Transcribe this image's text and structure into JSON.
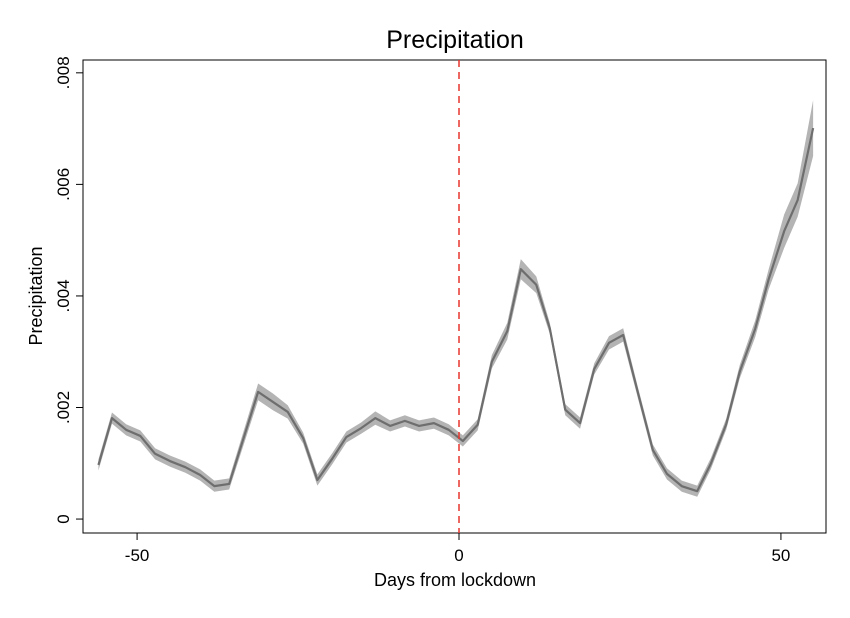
{
  "chart_data": {
    "type": "line",
    "title": "Precipitation",
    "xlabel": "Days from lockdown",
    "ylabel": "Precipitation",
    "x": [
      -56,
      -53.9,
      -51.7,
      -49.5,
      -47.2,
      -44.9,
      -42.5,
      -40.2,
      -38,
      -35.7,
      -31.2,
      -28.9,
      -26.6,
      -24.2,
      -22,
      -19.7,
      -17.5,
      -15.2,
      -13,
      -10.7,
      -8.4,
      -6.2,
      -3.9,
      -1.6,
      0.6,
      2.9,
      5.1,
      7.5,
      9.6,
      12,
      14.1,
      16.5,
      18.8,
      21,
      23.3,
      25.5,
      27.8,
      30.1,
      32.3,
      34.6,
      37,
      39.1,
      41.5,
      43.6,
      46,
      48.1,
      50.5,
      52.6,
      55
    ],
    "values": [
      0.00097,
      0.00181,
      0.0016,
      0.00149,
      0.00117,
      0.00104,
      0.00093,
      0.00079,
      0.00059,
      0.00063,
      0.00228,
      0.0021,
      0.00192,
      0.00145,
      0.0007,
      0.00108,
      0.00147,
      0.00163,
      0.00181,
      0.00167,
      0.00176,
      0.00167,
      0.00172,
      0.0016,
      0.0014,
      0.00169,
      0.00282,
      0.00337,
      0.00448,
      0.0042,
      0.00342,
      0.00196,
      0.00172,
      0.00269,
      0.00316,
      0.0033,
      0.00226,
      0.00124,
      0.00081,
      0.00059,
      0.0005,
      0.00099,
      0.0017,
      0.00264,
      0.00341,
      0.0043,
      0.00516,
      0.00572,
      0.00701
    ],
    "upper": [
      0.00107,
      0.00191,
      0.0017,
      0.00159,
      0.00127,
      0.00114,
      0.00103,
      0.00089,
      0.00069,
      0.00073,
      0.00243,
      0.00225,
      0.00204,
      0.00155,
      0.0008,
      0.00118,
      0.00157,
      0.00173,
      0.00193,
      0.00177,
      0.00186,
      0.00177,
      0.00182,
      0.0017,
      0.0015,
      0.00179,
      0.00294,
      0.00352,
      0.00466,
      0.00435,
      0.00352,
      0.00206,
      0.00182,
      0.00279,
      0.00328,
      0.00342,
      0.00236,
      0.00134,
      0.00091,
      0.00069,
      0.0006,
      0.00109,
      0.0018,
      0.00276,
      0.00356,
      0.00448,
      0.00546,
      0.00602,
      0.00751
    ],
    "lower": [
      0.00087,
      0.00171,
      0.0015,
      0.00139,
      0.00107,
      0.00094,
      0.00083,
      0.00069,
      0.00049,
      0.00053,
      0.00213,
      0.00195,
      0.0018,
      0.00135,
      0.0006,
      0.00098,
      0.00137,
      0.00153,
      0.00169,
      0.00157,
      0.00166,
      0.00157,
      0.00162,
      0.0015,
      0.0013,
      0.00159,
      0.0027,
      0.00322,
      0.0043,
      0.00405,
      0.00332,
      0.00186,
      0.00162,
      0.00259,
      0.00304,
      0.00318,
      0.00216,
      0.00114,
      0.00071,
      0.00049,
      0.0004,
      0.00089,
      0.0016,
      0.00252,
      0.00326,
      0.00412,
      0.00486,
      0.00542,
      0.00651
    ],
    "color": "#6e6e6e",
    "band_color": "#b4b4b4",
    "vline": {
      "x": 0,
      "color": "#e8352e"
    },
    "xlim": [
      -58.4,
      57
    ],
    "xticks": [
      -50,
      0,
      50
    ],
    "ylim": [
      -0.00025,
      0.00823
    ],
    "yticks": [
      0,
      {
        "value": 0.002,
        "label": ".002"
      },
      {
        "value": 0.004,
        "label": ".004"
      },
      {
        "value": 0.006,
        "label": ".006"
      },
      {
        "value": 0.008,
        "label": ".008"
      }
    ]
  }
}
